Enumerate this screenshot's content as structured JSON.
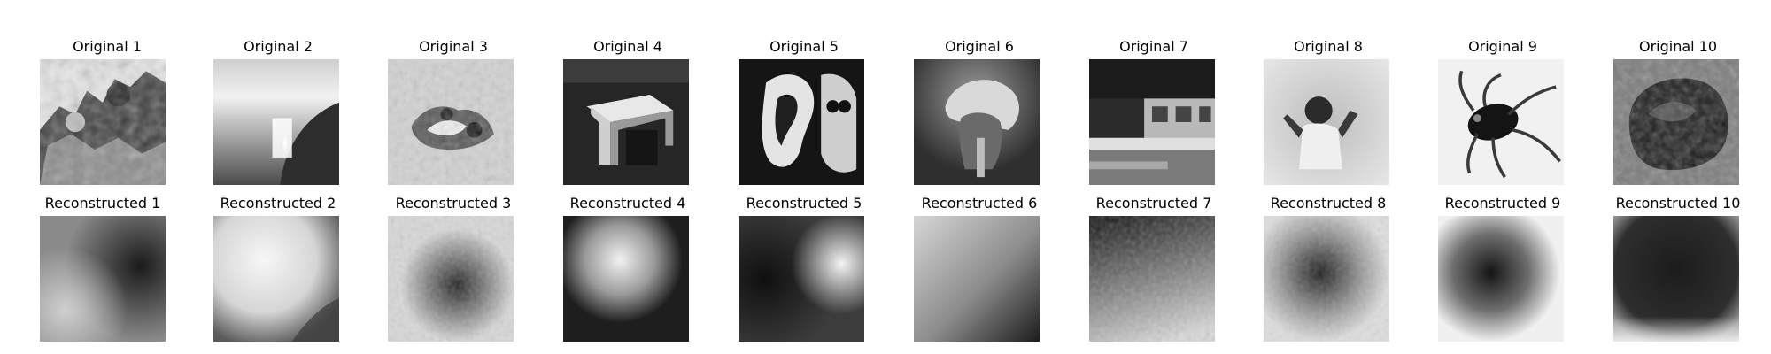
{
  "rows": [
    {
      "name": "original",
      "titles": [
        "Original 1",
        "Original 2",
        "Original 3",
        "Original 4",
        "Original 5",
        "Original 6",
        "Original 7",
        "Original 8",
        "Original 9",
        "Original 10"
      ]
    },
    {
      "name": "reconstructed",
      "titles": [
        "Reconstructed 1",
        "Reconstructed 2",
        "Reconstructed 3",
        "Reconstructed 4",
        "Reconstructed 5",
        "Reconstructed 6",
        "Reconstructed 7",
        "Reconstructed 8",
        "Reconstructed 9",
        "Reconstructed 10"
      ]
    }
  ]
}
